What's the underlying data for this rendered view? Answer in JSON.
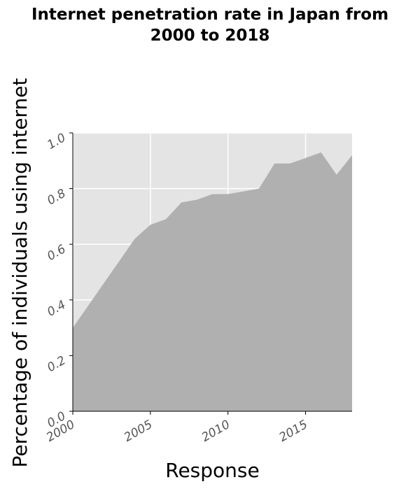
{
  "title_lines": [
    "Internet penetration rate in Japan from",
    "2000 to 2018"
  ],
  "colors": {
    "panel_background": "#e4e4e4",
    "area_fill": "#b0b0b0",
    "grid": "#ffffff",
    "axis_line": "#000000"
  },
  "chart_data": {
    "type": "area",
    "title": "Internet penetration rate in Japan from 2000 to 2018",
    "xlabel": "Response",
    "ylabel": "Percentage of individuals using internet",
    "xlim": [
      2000,
      2018
    ],
    "ylim": [
      0,
      1
    ],
    "x_ticks": [
      2000,
      2005,
      2010,
      2015
    ],
    "x_tick_labels": [
      "2000",
      "2005",
      "2010",
      "2015"
    ],
    "y_ticks": [
      0,
      0.2,
      0.4,
      0.6,
      0.8,
      1
    ],
    "y_tick_labels": [
      "0.0",
      "0.2",
      "0.4",
      "0.6",
      "0.8",
      "1.0"
    ],
    "grid": true,
    "legend": "none",
    "x": [
      2000,
      2001,
      2002,
      2003,
      2004,
      2005,
      2006,
      2007,
      2008,
      2009,
      2010,
      2011,
      2012,
      2013,
      2014,
      2015,
      2016,
      2017,
      2018
    ],
    "y": [
      0.3,
      0.38,
      0.46,
      0.54,
      0.62,
      0.67,
      0.69,
      0.75,
      0.76,
      0.78,
      0.78,
      0.79,
      0.8,
      0.89,
      0.89,
      0.91,
      0.93,
      0.85,
      0.92
    ]
  }
}
